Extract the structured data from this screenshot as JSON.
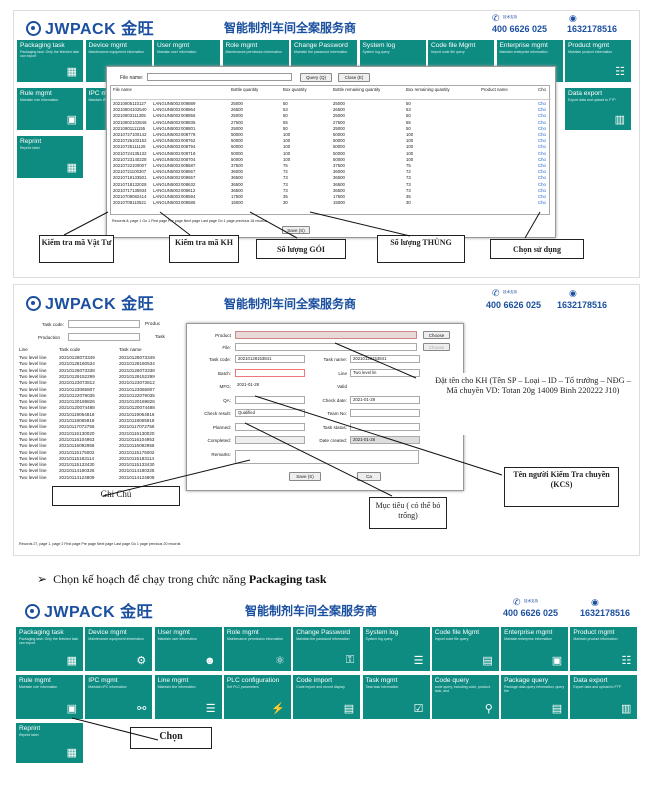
{
  "brand": {
    "name": "JWPACK",
    "cn_name": "金旺",
    "tagline": "智能制剂车间全案服务商",
    "tech_label": "技术支持",
    "phone1": "400 6626 025",
    "phone2": "1632178516"
  },
  "tiles": [
    {
      "title": "Packaging task",
      "sub": "Packaging task: Only the finished task can export"
    },
    {
      "title": "Device mgmt",
      "sub": "Maintenance equipment information"
    },
    {
      "title": "User mgmt",
      "sub": "Maintain user information"
    },
    {
      "title": "Role mgmt",
      "sub": "Maintenance permission information"
    },
    {
      "title": "Change Password",
      "sub": "Maintain the password information"
    },
    {
      "title": "System log",
      "sub": "System log query"
    },
    {
      "title": "Code file Mgmt",
      "sub": "Import code file query"
    },
    {
      "title": "Enterprise mgmt",
      "sub": "Maintain enterprise information"
    },
    {
      "title": "Product mgmt",
      "sub": "Maintain product information"
    },
    {
      "title": "Rule mgmt",
      "sub": "Maintain rule information"
    },
    {
      "title": "IPC mgmt",
      "sub": "Maintain IPC information"
    },
    {
      "title": "Line mgmt",
      "sub": "Maintain line information"
    },
    {
      "title": "PLC configuration",
      "sub": "Set PLC parameters"
    },
    {
      "title": "Code import",
      "sub": "Code import and record display"
    },
    {
      "title": "Task mgmt",
      "sub": "Task task information"
    },
    {
      "title": "Code query",
      "sub": "code query, including code, product, task, and"
    },
    {
      "title": "Package query",
      "sub": "Package data query information, query the"
    },
    {
      "title": "Data export",
      "sub": "Export data and upload to FTP"
    },
    {
      "title": "Reprint",
      "sub": "Reprint label"
    }
  ],
  "dialog1": {
    "file_label": "File name:",
    "query_btn": "Query (Q)",
    "close_btn": "Close (E)",
    "headers": [
      "File name",
      "",
      "",
      "Bottle quantity",
      "Box quantity",
      "Bottle remaining quantity",
      "Box remaining quantity",
      "Product name",
      "Cho"
    ],
    "rows": [
      [
        "20210805110127",
        "LANGUN5002",
        "008889",
        "25000",
        "50",
        "25000",
        "50",
        "",
        "Cho"
      ],
      [
        "20210804102540",
        "LANGUN5002",
        "008864",
        "26500",
        "53",
        "26500",
        "53",
        "",
        "Cho"
      ],
      [
        "20210803111305",
        "LANGUN5002",
        "008856",
        "25000",
        "50",
        "25000",
        "50",
        "",
        "Cho"
      ],
      [
        "20210802102846",
        "LANGUN5002",
        "008835",
        "27500",
        "55",
        "27500",
        "55",
        "",
        "Cho"
      ],
      [
        "20210801111155",
        "LANGUN5002",
        "008801",
        "25000",
        "50",
        "25000",
        "50",
        "",
        "Cho"
      ],
      [
        "20210727100142",
        "LANGUN5002",
        "008778",
        "50000",
        "100",
        "50000",
        "100",
        "",
        "Cho"
      ],
      [
        "20210726102152",
        "LANGUN5002",
        "008762",
        "50000",
        "100",
        "50000",
        "100",
        "",
        "Cho"
      ],
      [
        "20210725111126",
        "LANGUN5002",
        "008794",
        "50000",
        "100",
        "50000",
        "100",
        "",
        "Cho"
      ],
      [
        "20210724135132",
        "LANGUN5002",
        "008718",
        "50000",
        "100",
        "50000",
        "100",
        "",
        "Cho"
      ],
      [
        "20210723140228",
        "LANGUN5002",
        "008704",
        "50000",
        "100",
        "50000",
        "100",
        "",
        "Cho"
      ],
      [
        "20210722100007",
        "LANGUN5002",
        "008687",
        "37500",
        "75",
        "37500",
        "75",
        "",
        "Cho"
      ],
      [
        "20210721100307",
        "LANGUN5002",
        "008667",
        "36000",
        "72",
        "36000",
        "72",
        "",
        "Cho"
      ],
      [
        "20210719133501",
        "LANGUN5002",
        "008657",
        "36500",
        "73",
        "36500",
        "73",
        "",
        "Cho"
      ],
      [
        "20210718132028",
        "LANGUN5002",
        "008632",
        "36500",
        "73",
        "36500",
        "73",
        "",
        "Cho"
      ],
      [
        "20210717135934",
        "LANGUN5002",
        "008612",
        "36500",
        "73",
        "36500",
        "73",
        "",
        "Cho"
      ],
      [
        "20210709082414",
        "LANGUN5002",
        "008594",
        "17500",
        "35",
        "17500",
        "35",
        "",
        "Cho"
      ],
      [
        "20210708110521",
        "LANGUN5002",
        "008586",
        "15000",
        "30",
        "15000",
        "30",
        "",
        "Cho"
      ]
    ],
    "footer": "Records 8, page 1 Go 1   First page  Pre page  Next page  Last page  Go 1    page  previous 18   records",
    "save_btn": "Save (S)"
  },
  "annotations1": [
    "Kiểm tra mã Vật Tư",
    "Kiểm tra mã KH",
    "Số lượng GÓI",
    "Số lượng THÙNG",
    "Chọn sử dụng"
  ],
  "screen2": {
    "task_code_label": "Task code:",
    "product_label": "Produc",
    "production_label": "Production",
    "task_label": "Task",
    "list_headers": [
      "Line",
      "Task code",
      "Task name"
    ],
    "list_rows": [
      [
        "Two level line",
        "20210128073349",
        "20210128073349"
      ],
      [
        "Two level line",
        "20210128160534",
        "20210128160534"
      ],
      [
        "Two level line",
        "20210126073338",
        "20210126073338"
      ],
      [
        "Two level line",
        "20210129152299",
        "20210129152299"
      ],
      [
        "Two level line",
        "20210123073812",
        "20210123073812"
      ],
      [
        "Two level line",
        "20210123065807",
        "20210123065807"
      ],
      [
        "Two level line",
        "20210122079035",
        "20210122079035"
      ],
      [
        "Two level line",
        "20210120169826",
        "20210120169826"
      ],
      [
        "Two level line",
        "20210120074488",
        "20210120074488"
      ],
      [
        "Two level line",
        "20210119064816",
        "20210119064816"
      ],
      [
        "Two level line",
        "20210118065918",
        "20210118065918"
      ],
      [
        "Two level line",
        "20210117072756",
        "20210117072756"
      ],
      [
        "Two level line",
        "20210116130020",
        "20210116130020"
      ],
      [
        "Two level line",
        "20210116104953",
        "20210116104953"
      ],
      [
        "Two level line",
        "20210116092956",
        "20210116092956"
      ],
      [
        "Two level line",
        "20210115175002",
        "20210115175002"
      ],
      [
        "Two level line",
        "20210115183114",
        "20210115183114"
      ],
      [
        "Two level line",
        "20210115133430",
        "20210115133430"
      ],
      [
        "Two level line",
        "20210114180326",
        "20210114180326"
      ],
      [
        "Two level line",
        "20210114124809",
        "20210114124809"
      ]
    ],
    "footer": "Records 27, page 1, page 2  First page  Pre page  Next page  Last page  Go 1        page  previous 20        records",
    "form": {
      "product": "Product",
      "file": "File:",
      "task_code": "Task code:",
      "task_code_val": "20210128153841",
      "task_name": "Task name:",
      "task_name_val": "20210128153841",
      "batch": "Batch:",
      "line": "Line",
      "line_val": "Two level lin",
      "mfg": "MFG:",
      "mfg_val": "2021-01-28",
      "valid": "Valid",
      "qa": "QA:",
      "check_date": "Check date:",
      "check_date_val": "2021-01-28",
      "check_result": "Check result:",
      "check_result_val": "Qualified",
      "team_no": "Team No:",
      "planned": "Planned:",
      "task_status": "Task status:",
      "completed": "Completed:",
      "date_created": "Date created:",
      "date_created_val": "2021-01-28",
      "remarks": "Remarks:",
      "choose": "Choose",
      "save": "Save (S)",
      "cancel": "Ca"
    }
  },
  "annotations2": {
    "naming": "Đặt tên cho KH (Tên SP – Loại – ID – Tổ trưởng – NĐG – Mã chuyền VD: Totan 20g 14009 Binh 220222 J10)",
    "kcs": "Tên người Kiểm Tra chuyền (KCS)",
    "target": "Mục tiêu ( có thể bỏ trống)",
    "note": "Ghi Chú"
  },
  "bullet": {
    "prefix": "Chọn kế hoạch để chạy trong chức năng ",
    "bold": "Packaging task"
  },
  "choose_label": "Chọn"
}
